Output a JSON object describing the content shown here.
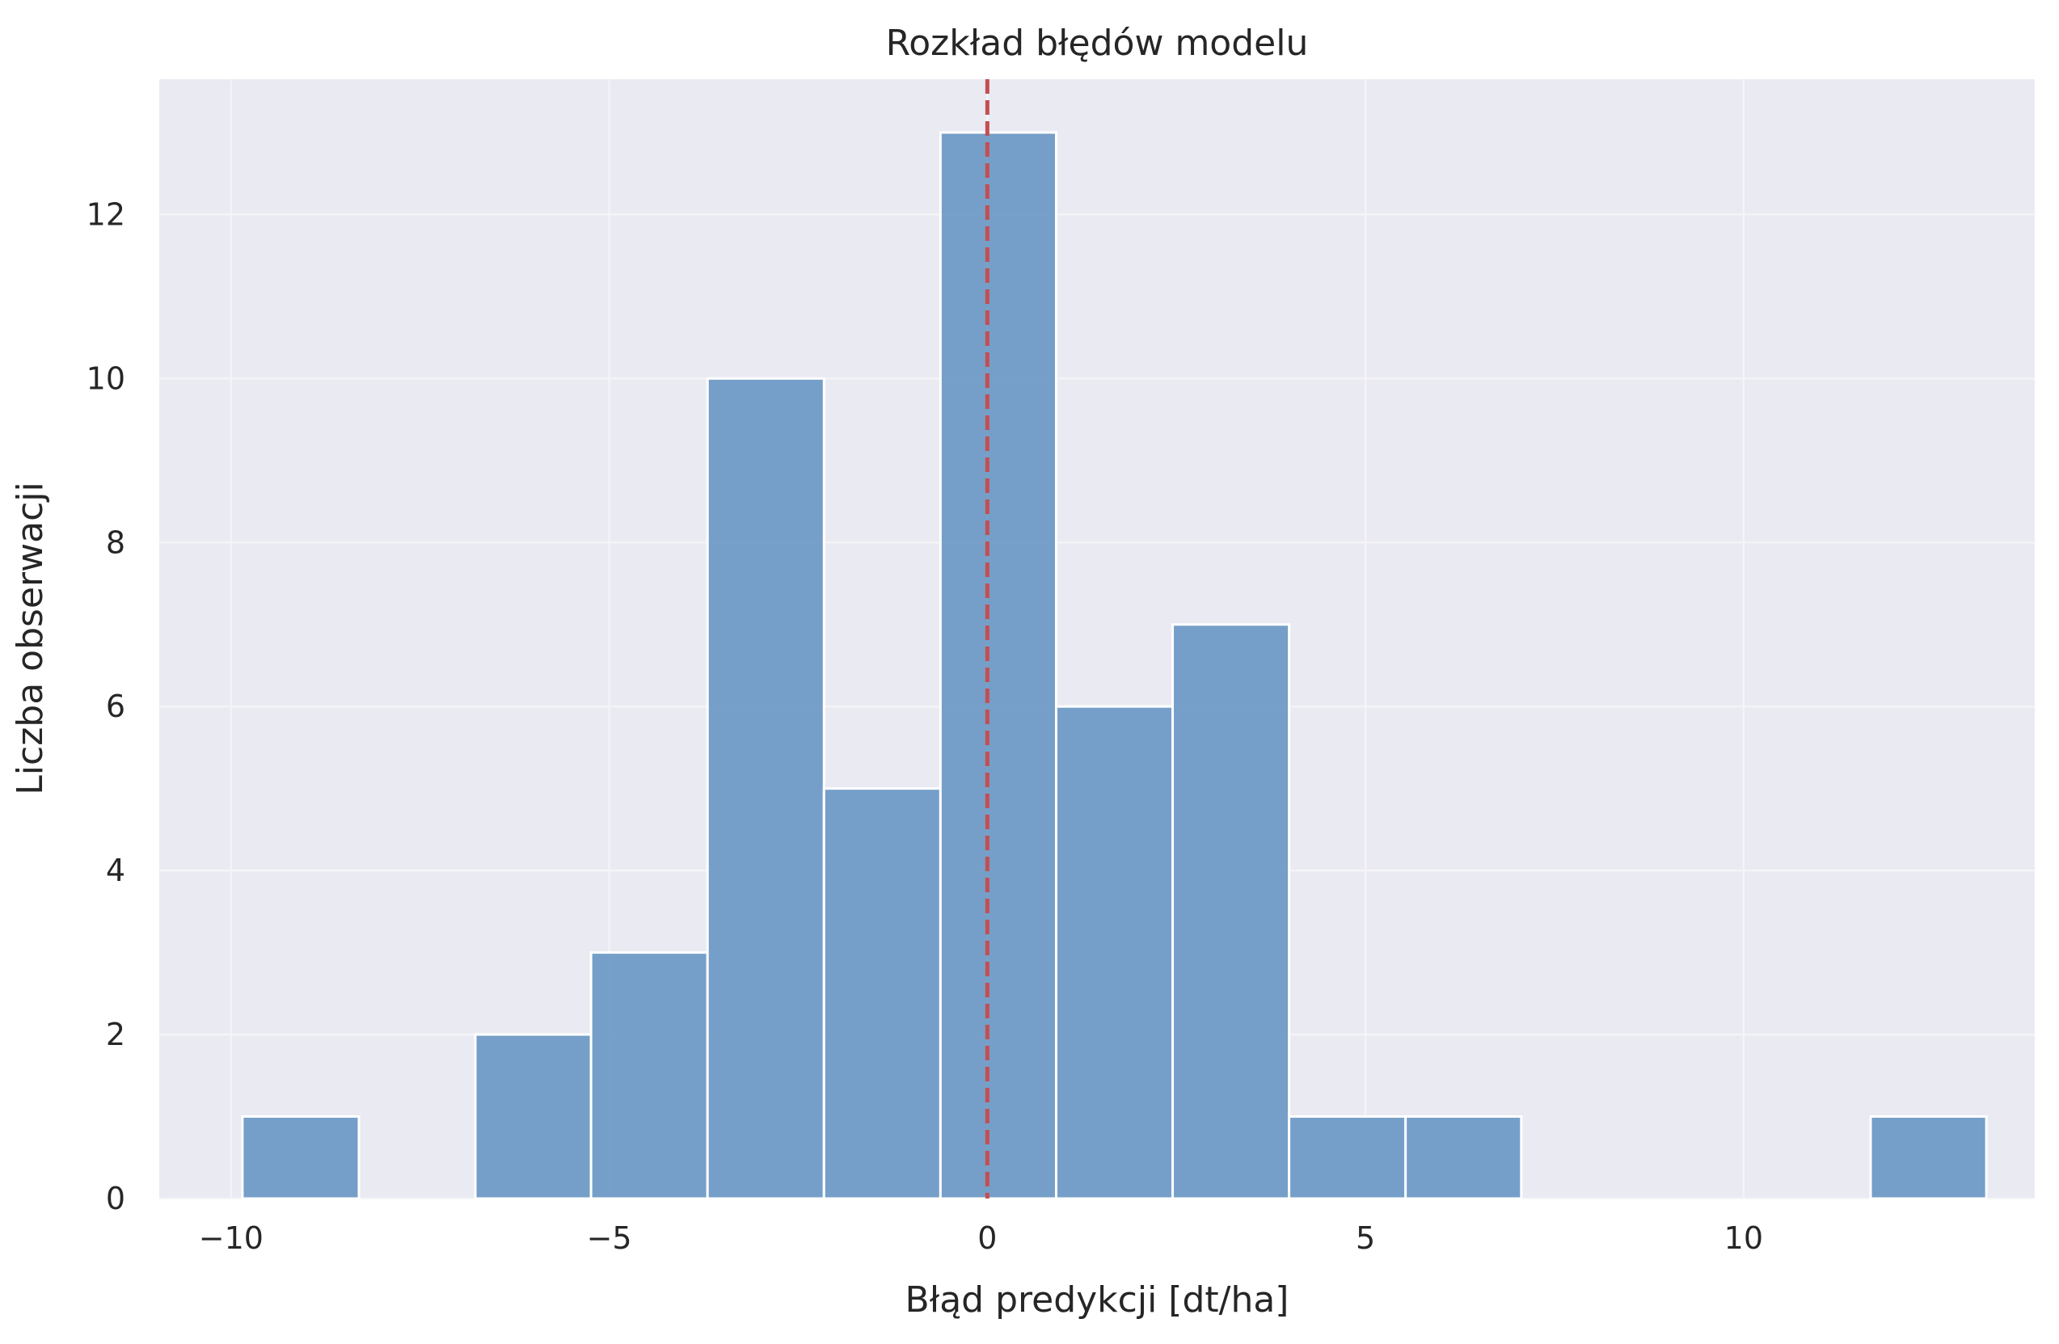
{
  "chart_data": {
    "type": "bar",
    "subtype": "histogram",
    "title": "Rozkład błędów modelu",
    "xlabel": "Błąd predykcji [dt/ha]",
    "ylabel": "Liczba obserwacji",
    "xlim": [
      -10.95,
      13.85
    ],
    "ylim": [
      0,
      13.65
    ],
    "xticks": [
      -10,
      -5,
      0,
      5,
      10
    ],
    "xtick_labels": [
      "−10",
      "−5",
      "0",
      "5",
      "10"
    ],
    "yticks": [
      0,
      2,
      4,
      6,
      8,
      10,
      12
    ],
    "ytick_labels": [
      "0",
      "2",
      "4",
      "6",
      "8",
      "10",
      "12"
    ],
    "grid": true,
    "bins": [
      {
        "x0": -9.85,
        "x1": -8.31,
        "count": 1
      },
      {
        "x0": -8.31,
        "x1": -6.77,
        "count": 0
      },
      {
        "x0": -6.77,
        "x1": -5.24,
        "count": 2
      },
      {
        "x0": -5.24,
        "x1": -3.7,
        "count": 3
      },
      {
        "x0": -3.7,
        "x1": -2.16,
        "count": 10
      },
      {
        "x0": -2.16,
        "x1": -0.62,
        "count": 5
      },
      {
        "x0": -0.62,
        "x1": 0.91,
        "count": 13
      },
      {
        "x0": 0.91,
        "x1": 2.45,
        "count": 6
      },
      {
        "x0": 2.45,
        "x1": 3.99,
        "count": 7
      },
      {
        "x0": 3.99,
        "x1": 5.53,
        "count": 1
      },
      {
        "x0": 5.53,
        "x1": 7.06,
        "count": 1
      },
      {
        "x0": 7.06,
        "x1": 8.6,
        "count": 0
      },
      {
        "x0": 8.6,
        "x1": 10.14,
        "count": 0
      },
      {
        "x0": 10.14,
        "x1": 11.68,
        "count": 0
      },
      {
        "x0": 11.68,
        "x1": 13.21,
        "count": 1
      }
    ],
    "reference_line": {
      "x": 0,
      "style": "dashed",
      "color": "#c44e52"
    },
    "colors": {
      "bar": "#6f9bc5",
      "bar_edge": "#ffffff",
      "plot_background": "#eaeaf2",
      "grid": "#f5f5f8"
    }
  }
}
